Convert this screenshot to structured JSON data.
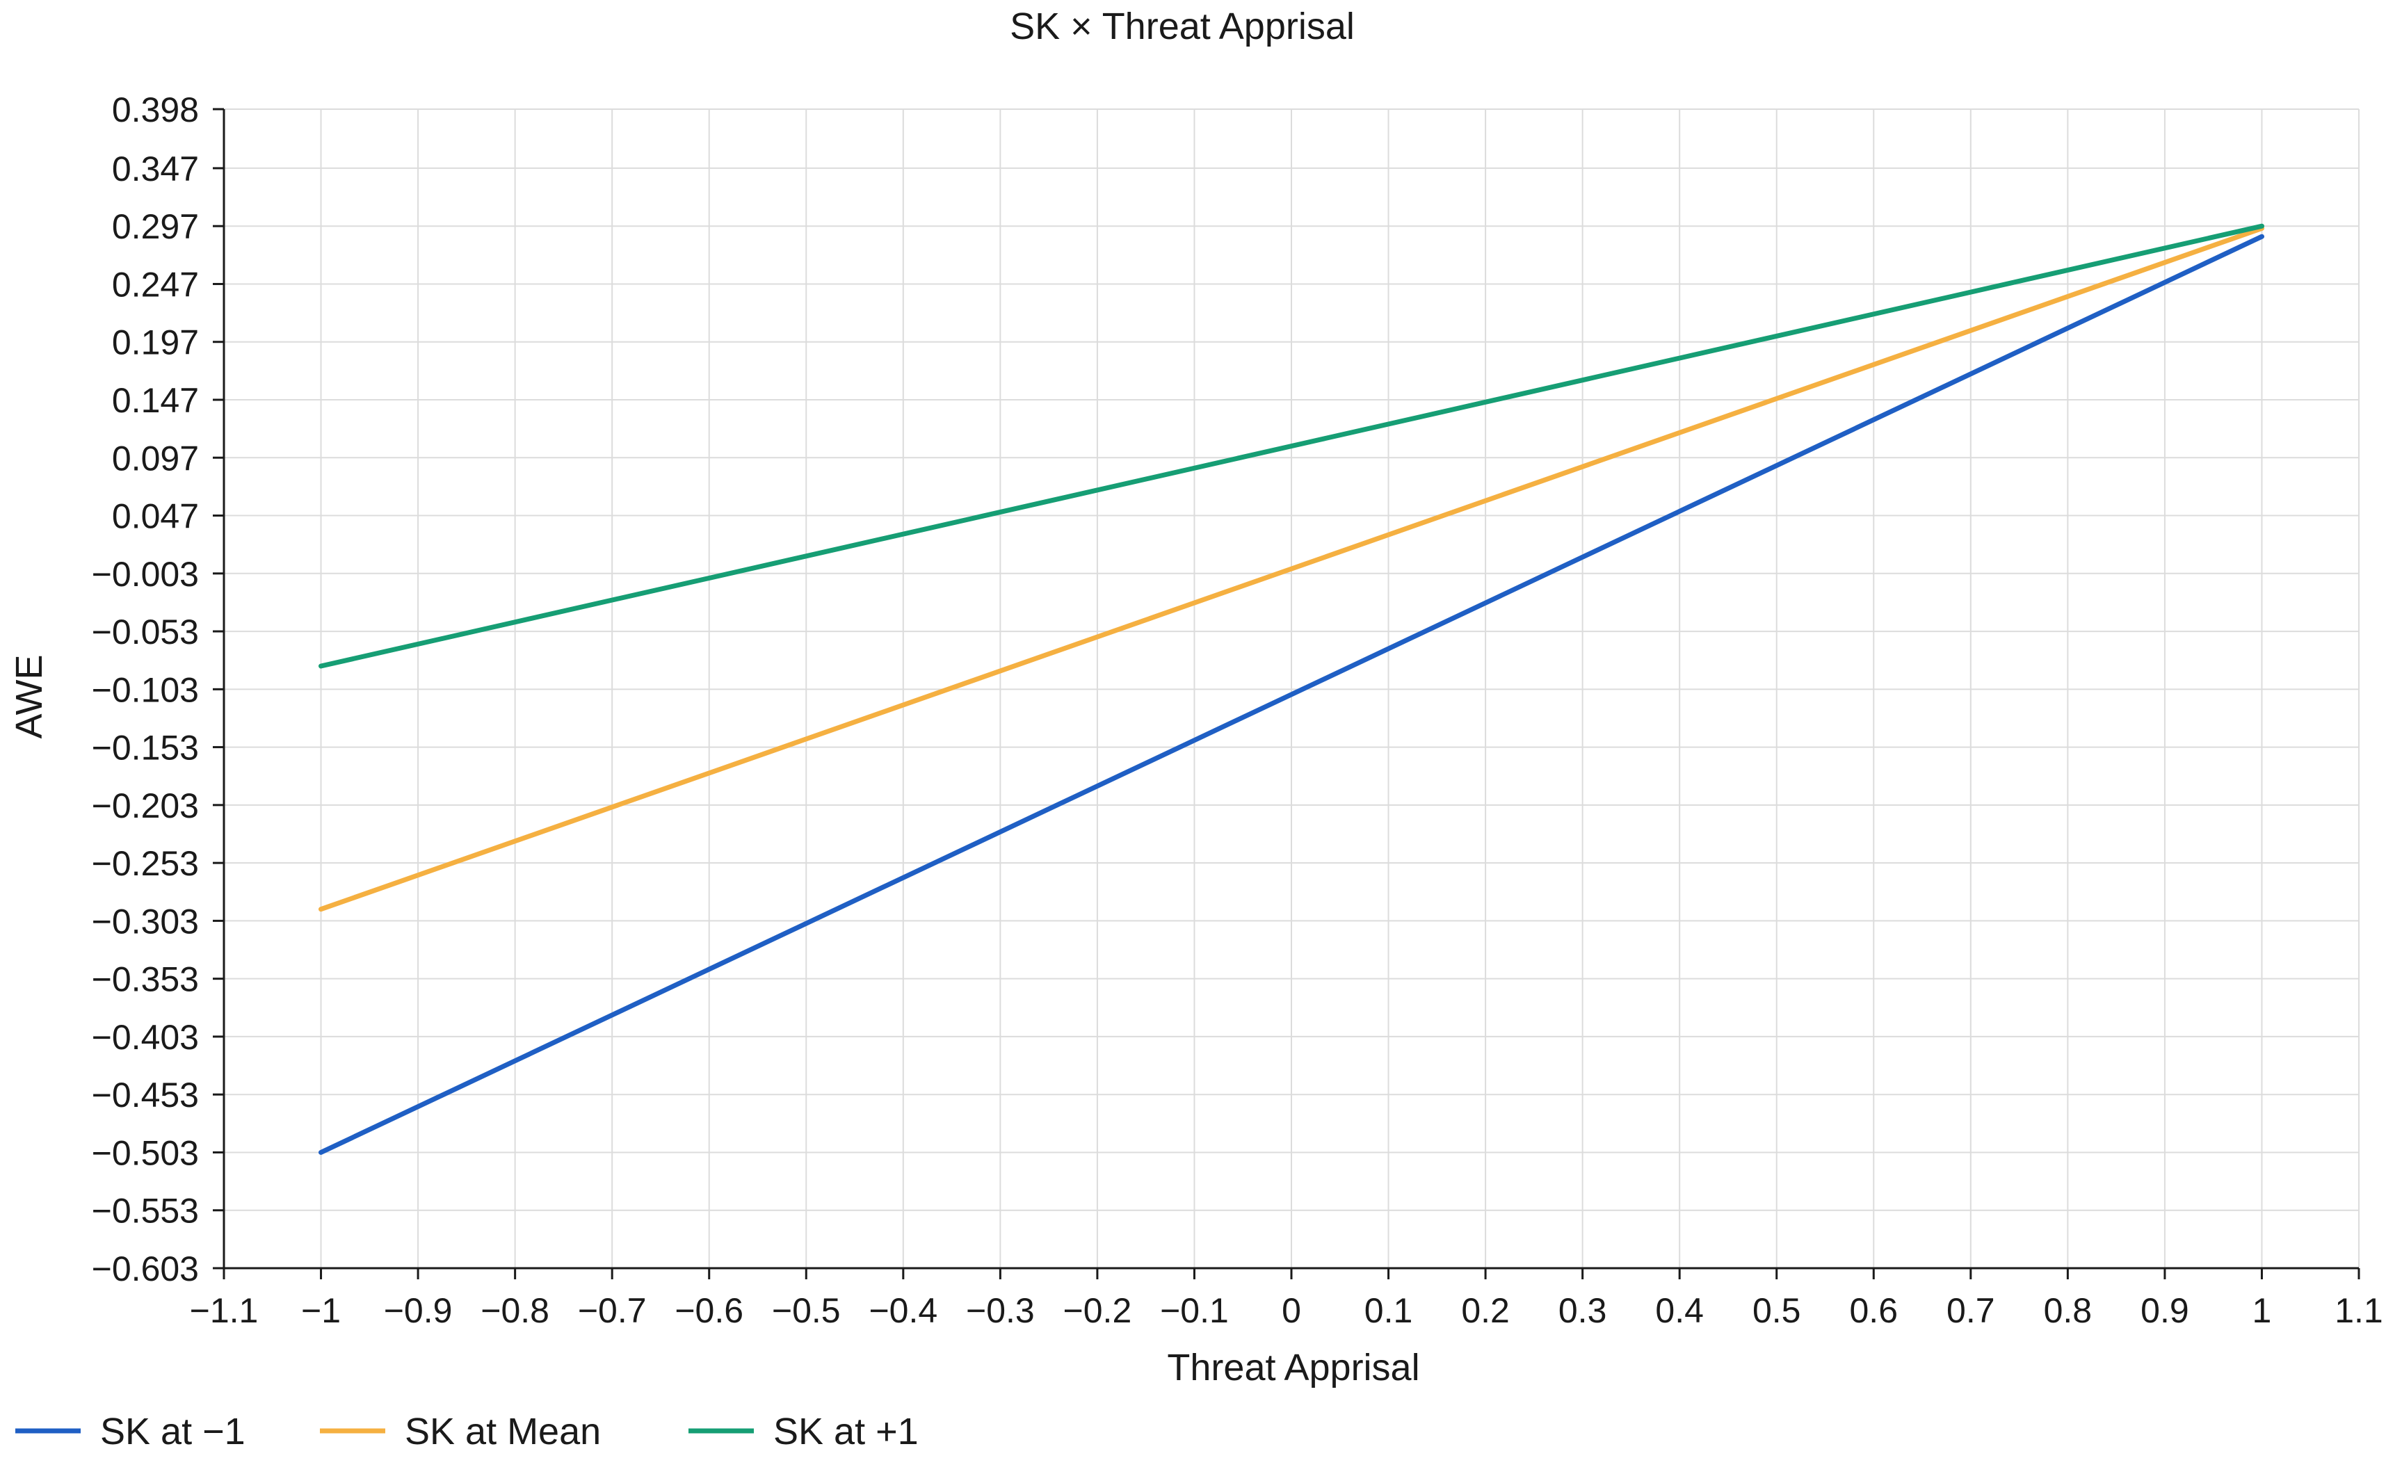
{
  "chart_data": {
    "type": "line",
    "title": "SK × Threat Apprisal",
    "xlabel": "Threat Apprisal",
    "ylabel": "AWE",
    "xlim": [
      -1.1,
      1.1
    ],
    "ylim": [
      -0.603,
      0.398
    ],
    "x_ticks": [
      -1.1,
      -1,
      -0.9,
      -0.8,
      -0.7,
      -0.6,
      -0.5,
      -0.4,
      -0.3,
      -0.2,
      -0.1,
      0,
      0.1,
      0.2,
      0.3,
      0.4,
      0.5,
      0.6,
      0.7,
      0.8,
      0.9,
      1,
      1.1
    ],
    "x_tick_labels": [
      "−1.1",
      "−1",
      "−0.9",
      "−0.8",
      "−0.7",
      "−0.6",
      "−0.5",
      "−0.4",
      "−0.3",
      "−0.2",
      "−0.1",
      "0",
      "0.1",
      "0.2",
      "0.3",
      "0.4",
      "0.5",
      "0.6",
      "0.7",
      "0.8",
      "0.9",
      "1",
      "1.1"
    ],
    "y_ticks": [
      0.398,
      0.347,
      0.297,
      0.247,
      0.197,
      0.147,
      0.097,
      0.047,
      -0.003,
      -0.053,
      -0.103,
      -0.153,
      -0.203,
      -0.253,
      -0.303,
      -0.353,
      -0.403,
      -0.453,
      -0.503,
      -0.553,
      -0.603
    ],
    "y_tick_labels": [
      "0.398",
      "0.347",
      "0.297",
      "0.247",
      "0.197",
      "0.147",
      "0.097",
      "0.047",
      "−0.003",
      "−0.053",
      "−0.103",
      "−0.153",
      "−0.203",
      "−0.253",
      "−0.303",
      "−0.353",
      "−0.403",
      "−0.453",
      "−0.503",
      "−0.553",
      "−0.603"
    ],
    "grid": true,
    "legend_position": "bottom-left",
    "series": [
      {
        "name": "SK at −1",
        "color": "#1f5fc4",
        "x": [
          -1,
          1
        ],
        "y": [
          -0.503,
          0.288
        ]
      },
      {
        "name": "SK at Mean",
        "color": "#f5b041",
        "x": [
          -1,
          1
        ],
        "y": [
          -0.293,
          0.295
        ]
      },
      {
        "name": "SK at +1",
        "color": "#169e74",
        "x": [
          -1,
          1
        ],
        "y": [
          -0.083,
          0.297
        ]
      }
    ]
  }
}
